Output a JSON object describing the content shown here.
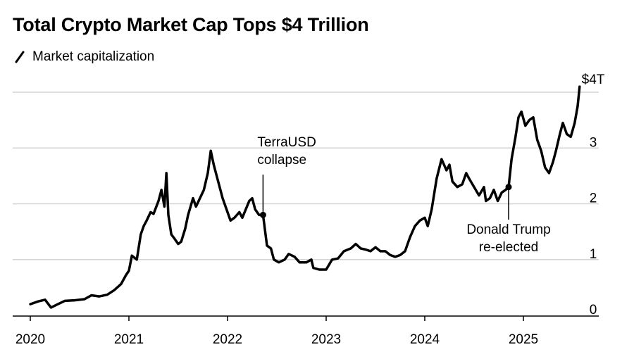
{
  "title": "Total Crypto Market Cap Tops $4 Trillion",
  "legend_label": "Market capitalization",
  "chart_data": {
    "type": "line",
    "title": "Total Crypto Market Cap Tops $4 Trillion",
    "xlabel": "",
    "ylabel": "",
    "unit": "Trillion USD",
    "xlim": [
      2020.0,
      2025.7
    ],
    "ylim": [
      0,
      4
    ],
    "x_ticks": [
      {
        "value": 2020,
        "label": "2020"
      },
      {
        "value": 2021,
        "label": "2021"
      },
      {
        "value": 2022,
        "label": "2022"
      },
      {
        "value": 2023,
        "label": "2023"
      },
      {
        "value": 2024,
        "label": "2024"
      },
      {
        "value": 2025,
        "label": "2025"
      }
    ],
    "y_ticks": [
      {
        "value": 0,
        "label": "0"
      },
      {
        "value": 1,
        "label": "1"
      },
      {
        "value": 2,
        "label": "2"
      },
      {
        "value": 3,
        "label": "3"
      },
      {
        "value": 4,
        "label": "$4T"
      }
    ],
    "grid": true,
    "series": [
      {
        "name": "Market capitalization",
        "color": "#000000",
        "points": [
          [
            2020.0,
            0.2
          ],
          [
            2020.08,
            0.25
          ],
          [
            2020.15,
            0.28
          ],
          [
            2020.21,
            0.14
          ],
          [
            2020.28,
            0.2
          ],
          [
            2020.35,
            0.26
          ],
          [
            2020.45,
            0.27
          ],
          [
            2020.55,
            0.29
          ],
          [
            2020.62,
            0.36
          ],
          [
            2020.7,
            0.34
          ],
          [
            2020.78,
            0.37
          ],
          [
            2020.85,
            0.45
          ],
          [
            2020.92,
            0.56
          ],
          [
            2020.97,
            0.72
          ],
          [
            2021.0,
            0.8
          ],
          [
            2021.03,
            1.07
          ],
          [
            2021.08,
            1.0
          ],
          [
            2021.12,
            1.45
          ],
          [
            2021.15,
            1.6
          ],
          [
            2021.18,
            1.7
          ],
          [
            2021.22,
            1.85
          ],
          [
            2021.25,
            1.82
          ],
          [
            2021.3,
            2.05
          ],
          [
            2021.33,
            2.25
          ],
          [
            2021.36,
            1.95
          ],
          [
            2021.38,
            2.55
          ],
          [
            2021.4,
            1.8
          ],
          [
            2021.43,
            1.45
          ],
          [
            2021.46,
            1.38
          ],
          [
            2021.5,
            1.28
          ],
          [
            2021.53,
            1.32
          ],
          [
            2021.57,
            1.55
          ],
          [
            2021.6,
            1.8
          ],
          [
            2021.65,
            2.1
          ],
          [
            2021.68,
            1.95
          ],
          [
            2021.72,
            2.1
          ],
          [
            2021.76,
            2.25
          ],
          [
            2021.8,
            2.55
          ],
          [
            2021.83,
            2.95
          ],
          [
            2021.86,
            2.7
          ],
          [
            2021.89,
            2.5
          ],
          [
            2021.92,
            2.3
          ],
          [
            2021.95,
            2.1
          ],
          [
            2021.98,
            1.95
          ],
          [
            2022.03,
            1.7
          ],
          [
            2022.07,
            1.75
          ],
          [
            2022.12,
            1.85
          ],
          [
            2022.15,
            1.75
          ],
          [
            2022.22,
            2.05
          ],
          [
            2022.25,
            2.1
          ],
          [
            2022.28,
            1.9
          ],
          [
            2022.32,
            1.8
          ],
          [
            2022.36,
            1.8
          ],
          [
            2022.4,
            1.25
          ],
          [
            2022.44,
            1.2
          ],
          [
            2022.47,
            1.0
          ],
          [
            2022.52,
            0.95
          ],
          [
            2022.58,
            1.0
          ],
          [
            2022.62,
            1.1
          ],
          [
            2022.68,
            1.05
          ],
          [
            2022.73,
            0.95
          ],
          [
            2022.8,
            0.95
          ],
          [
            2022.85,
            1.0
          ],
          [
            2022.87,
            0.85
          ],
          [
            2022.93,
            0.82
          ],
          [
            2023.0,
            0.82
          ],
          [
            2023.06,
            1.0
          ],
          [
            2023.12,
            1.02
          ],
          [
            2023.18,
            1.15
          ],
          [
            2023.25,
            1.2
          ],
          [
            2023.3,
            1.28
          ],
          [
            2023.35,
            1.2
          ],
          [
            2023.4,
            1.18
          ],
          [
            2023.45,
            1.15
          ],
          [
            2023.5,
            1.22
          ],
          [
            2023.55,
            1.15
          ],
          [
            2023.6,
            1.15
          ],
          [
            2023.65,
            1.08
          ],
          [
            2023.7,
            1.05
          ],
          [
            2023.75,
            1.08
          ],
          [
            2023.8,
            1.15
          ],
          [
            2023.85,
            1.4
          ],
          [
            2023.9,
            1.6
          ],
          [
            2023.95,
            1.7
          ],
          [
            2024.0,
            1.75
          ],
          [
            2024.03,
            1.6
          ],
          [
            2024.07,
            1.9
          ],
          [
            2024.12,
            2.45
          ],
          [
            2024.17,
            2.8
          ],
          [
            2024.22,
            2.6
          ],
          [
            2024.25,
            2.7
          ],
          [
            2024.28,
            2.4
          ],
          [
            2024.33,
            2.3
          ],
          [
            2024.38,
            2.35
          ],
          [
            2024.42,
            2.55
          ],
          [
            2024.45,
            2.45
          ],
          [
            2024.5,
            2.3
          ],
          [
            2024.55,
            2.15
          ],
          [
            2024.6,
            2.3
          ],
          [
            2024.62,
            2.05
          ],
          [
            2024.66,
            2.1
          ],
          [
            2024.7,
            2.25
          ],
          [
            2024.74,
            2.05
          ],
          [
            2024.78,
            2.2
          ],
          [
            2024.82,
            2.25
          ],
          [
            2024.85,
            2.3
          ],
          [
            2024.88,
            2.8
          ],
          [
            2024.92,
            3.2
          ],
          [
            2024.95,
            3.55
          ],
          [
            2024.98,
            3.65
          ],
          [
            2025.02,
            3.4
          ],
          [
            2025.06,
            3.5
          ],
          [
            2025.1,
            3.55
          ],
          [
            2025.14,
            3.15
          ],
          [
            2025.18,
            2.95
          ],
          [
            2025.22,
            2.65
          ],
          [
            2025.26,
            2.55
          ],
          [
            2025.3,
            2.75
          ],
          [
            2025.33,
            2.95
          ],
          [
            2025.37,
            3.25
          ],
          [
            2025.4,
            3.45
          ],
          [
            2025.44,
            3.25
          ],
          [
            2025.48,
            3.2
          ],
          [
            2025.52,
            3.45
          ],
          [
            2025.55,
            3.75
          ],
          [
            2025.57,
            4.1
          ]
        ]
      }
    ],
    "annotations": [
      {
        "x": 2022.36,
        "y": 1.8,
        "lines": [
          "TerraUSD",
          "collapse"
        ],
        "position": "above"
      },
      {
        "x": 2024.85,
        "y": 2.3,
        "lines": [
          "Donald Trump",
          "re-elected"
        ],
        "position": "below"
      }
    ]
  }
}
